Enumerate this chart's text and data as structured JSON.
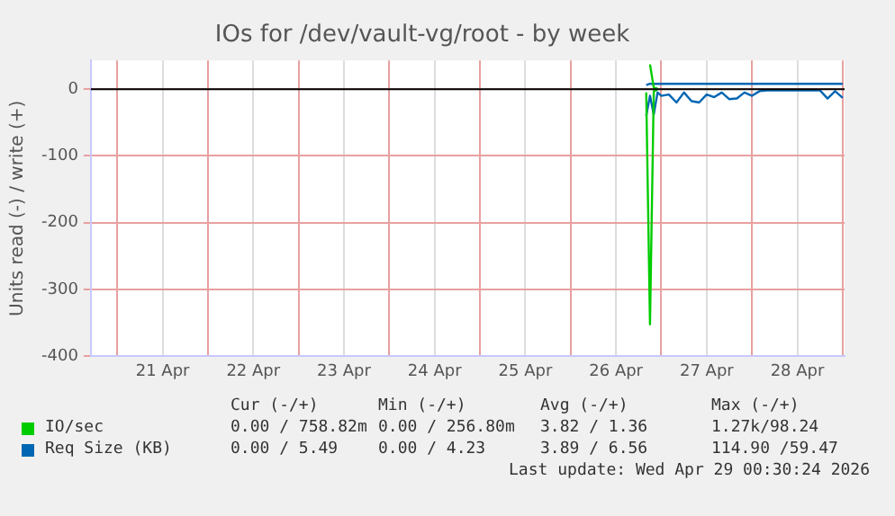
{
  "chart_data": {
    "type": "line",
    "title": "IOs for /dev/vault-vg/root - by week",
    "ylabel": "Units read (-) / write (+)",
    "x": [
      "2026-04-26T20:00",
      "2026-04-26T21:00",
      "2026-04-26T22:00",
      "2026-04-26T23:00",
      "2026-04-27T00:00",
      "2026-04-27T02:00",
      "2026-04-27T04:00",
      "2026-04-27T06:00",
      "2026-04-27T08:00",
      "2026-04-27T10:00",
      "2026-04-27T12:00",
      "2026-04-27T14:00",
      "2026-04-27T16:00",
      "2026-04-27T18:00",
      "2026-04-27T20:00",
      "2026-04-27T22:00",
      "2026-04-28T00:00",
      "2026-04-28T02:00",
      "2026-04-28T04:00",
      "2026-04-28T06:00",
      "2026-04-28T08:00",
      "2026-04-28T10:00",
      "2026-04-28T12:00",
      "2026-04-28T14:00",
      "2026-04-28T16:00",
      "2026-04-28T18:00",
      "2026-04-28T20:00",
      "2026-04-28T22:00",
      "2026-04-29T00:00"
    ],
    "series": [
      {
        "name": "IO/sec",
        "color": "#00cc00",
        "values": [
          -5,
          -352,
          -3,
          -1,
          null,
          null,
          null,
          null,
          null,
          null,
          null,
          null,
          null,
          null,
          null,
          null,
          null,
          null,
          null,
          null,
          null,
          null,
          null,
          null,
          null,
          null,
          null,
          null,
          null
        ]
      },
      {
        "color": "#00cc00",
        "values": [
          null,
          37,
          2,
          1,
          null,
          null,
          null,
          null,
          null,
          null,
          null,
          null,
          null,
          null,
          null,
          null,
          null,
          null,
          null,
          null,
          null,
          null,
          null,
          null,
          null,
          null,
          null,
          null,
          null
        ]
      },
      {
        "name": "Req Size (KB)",
        "color": "#0066b3",
        "values": [
          -40,
          -10,
          -38,
          -5,
          -10,
          -8,
          -20,
          -5,
          -18,
          -20,
          -8,
          -12,
          -5,
          -15,
          -14,
          -5,
          -10,
          -3,
          -2,
          -2,
          -2,
          -2,
          -2,
          -2,
          -2,
          -2,
          -14,
          -3,
          -13
        ]
      },
      {
        "color": "#0066b3",
        "values": [
          6,
          8,
          8,
          8,
          8,
          8,
          8,
          8,
          8,
          8,
          8,
          8,
          8,
          8,
          8,
          8,
          8,
          8,
          8,
          8,
          8,
          8,
          8,
          8,
          8,
          8,
          8,
          8,
          8
        ]
      }
    ],
    "xlim": [
      "2026-04-20T17:00",
      "2026-04-29T00:30"
    ],
    "xticks": [
      {
        "value": "2026-04-21T00:00",
        "label": null
      },
      {
        "value": "2026-04-21T12:00",
        "label": "21 Apr"
      },
      {
        "value": "2026-04-22T00:00",
        "label": null
      },
      {
        "value": "2026-04-22T12:00",
        "label": "22 Apr"
      },
      {
        "value": "2026-04-23T00:00",
        "label": null
      },
      {
        "value": "2026-04-23T12:00",
        "label": "23 Apr"
      },
      {
        "value": "2026-04-24T00:00",
        "label": null
      },
      {
        "value": "2026-04-24T12:00",
        "label": "24 Apr"
      },
      {
        "value": "2026-04-25T00:00",
        "label": null
      },
      {
        "value": "2026-04-25T12:00",
        "label": "25 Apr"
      },
      {
        "value": "2026-04-26T00:00",
        "label": null
      },
      {
        "value": "2026-04-26T12:00",
        "label": "26 Apr"
      },
      {
        "value": "2026-04-27T00:00",
        "label": null
      },
      {
        "value": "2026-04-27T12:00",
        "label": "27 Apr"
      },
      {
        "value": "2026-04-28T00:00",
        "label": null
      },
      {
        "value": "2026-04-28T12:00",
        "label": "28 Apr"
      },
      {
        "value": "2026-04-29T00:00",
        "label": null
      }
    ],
    "ylim": [
      -400,
      43
    ],
    "yticks": [
      -400,
      -300,
      -200,
      -100,
      0
    ],
    "ref_lines": [
      {
        "axis": "y",
        "value": 0,
        "color": "#000000"
      }
    ],
    "grid": true,
    "legend": "bottom",
    "marker": "none",
    "line_style": "solid",
    "annotations": [
      "Cur (-/+)",
      "Min (-/+)",
      "Avg (-/+)",
      "Max (-/+)",
      "0.00 / 758.82m",
      "0.00 / 256.80m",
      "3.82 / 1.36",
      "1.27k/98.24",
      "0.00 / 5.49",
      "0.00 / 4.23",
      "3.89 / 6.56",
      "114.90 /59.47",
      "Last update: Wed Apr 29 00:30:24 2026"
    ]
  }
}
